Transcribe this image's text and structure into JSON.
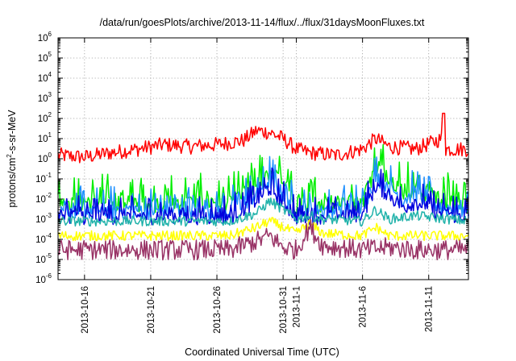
{
  "chart_data": {
    "type": "line",
    "title": "/data/run/goesPlots/archive/2013-11-14/flux/../flux/31daysMoonFluxes.txt",
    "xlabel": "Coordinated Universal Time (UTC)",
    "ylabel": "protons/cm2-s-sr-MeV",
    "ylabel_parts": {
      "before": "protons/cm",
      "sup": "2",
      "after": "-s-sr-MeV"
    },
    "y_scale": "log",
    "y_tick_exponents": [
      -6,
      -5,
      -4,
      -3,
      -2,
      -1,
      0,
      1,
      2,
      3,
      4,
      5,
      6
    ],
    "ylim": [
      "1e-6",
      "1e6"
    ],
    "xlim": [
      "2013-10-14",
      "2013-11-14"
    ],
    "x_ticks": [
      {
        "date": "2013-10-16",
        "label": "2013-10-16"
      },
      {
        "date": "2013-10-21",
        "label": "2013-10-21"
      },
      {
        "date": "2013-10-26",
        "label": "2013-10-26"
      },
      {
        "date": "2013-10-31",
        "label": "2013-10-31"
      },
      {
        "date": "2013-11-01",
        "label": "2013-11-1"
      },
      {
        "date": "2013-11-06",
        "label": "2013-11-6"
      },
      {
        "date": "2013-11-11",
        "label": "2013-11-11"
      }
    ],
    "grid": true,
    "legend": "none",
    "series": [
      {
        "color": "#ff0000",
        "x": [
          "2013-10-14",
          "2013-10-16",
          "2013-10-18",
          "2013-10-20",
          "2013-10-22",
          "2013-10-24",
          "2013-10-26",
          "2013-10-28",
          "2013-10-29",
          "2013-10-30",
          "2013-10-31",
          "2013-11-01",
          "2013-11-02",
          "2013-11-04",
          "2013-11-06",
          "2013-11-07",
          "2013-11-08",
          "2013-11-10",
          "2013-11-12",
          "2013-11-12T02:00",
          "2013-11-12T06:00",
          "2013-11-14"
        ],
        "y": [
          1.5,
          1.2,
          2.0,
          3.0,
          5.0,
          4.0,
          5.0,
          8.0,
          25,
          20,
          10,
          3.0,
          2.0,
          1.5,
          3.0,
          10,
          4.0,
          3.0,
          10,
          180,
          3.0,
          3.0
        ],
        "noise": 0.75
      },
      {
        "color": "#00ee00",
        "x": [
          "2013-10-14",
          "2013-10-16",
          "2013-10-20",
          "2013-10-24",
          "2013-10-27",
          "2013-10-29",
          "2013-10-30",
          "2013-10-31",
          "2013-11-01",
          "2013-11-03",
          "2013-11-06",
          "2013-11-07",
          "2013-11-08",
          "2013-11-09",
          "2013-11-10",
          "2013-11-12",
          "2013-11-14"
        ],
        "y": [
          0.01,
          0.008,
          0.008,
          0.008,
          0.008,
          0.05,
          0.3,
          0.08,
          0.005,
          0.008,
          0.01,
          0.5,
          0.2,
          0.03,
          0.05,
          0.01,
          0.008
        ],
        "noise": 1.15
      },
      {
        "color": "#1e90ff",
        "x": [
          "2013-10-14",
          "2013-10-16",
          "2013-10-20",
          "2013-10-24",
          "2013-10-27",
          "2013-10-29",
          "2013-10-30",
          "2013-10-31",
          "2013-11-01",
          "2013-11-03",
          "2013-11-06",
          "2013-11-07",
          "2013-11-08",
          "2013-11-09",
          "2013-11-10",
          "2013-11-12",
          "2013-11-14"
        ],
        "y": [
          0.004,
          0.003,
          0.003,
          0.003,
          0.003,
          0.02,
          0.1,
          0.02,
          0.003,
          0.003,
          0.004,
          0.15,
          0.05,
          0.01,
          0.02,
          0.004,
          0.003
        ],
        "noise": 1.0
      },
      {
        "color": "#0000dd",
        "x": [
          "2013-10-14",
          "2013-10-16",
          "2013-10-20",
          "2013-10-24",
          "2013-10-27",
          "2013-10-29",
          "2013-10-30",
          "2013-10-31",
          "2013-11-01",
          "2013-11-03",
          "2013-11-06",
          "2013-11-07",
          "2013-11-08",
          "2013-11-09",
          "2013-11-10",
          "2013-11-12",
          "2013-11-14"
        ],
        "y": [
          0.002,
          0.0015,
          0.0015,
          0.0015,
          0.0015,
          0.01,
          0.04,
          0.008,
          0.0015,
          0.0015,
          0.002,
          0.05,
          0.02,
          0.004,
          0.008,
          0.002,
          0.0015
        ],
        "noise": 0.9
      },
      {
        "color": "#20b2aa",
        "x": [
          "2013-10-14",
          "2013-10-20",
          "2013-10-27",
          "2013-10-29",
          "2013-10-30",
          "2013-10-31",
          "2013-11-01",
          "2013-11-02",
          "2013-11-03",
          "2013-11-06",
          "2013-11-07",
          "2013-11-08",
          "2013-11-10",
          "2013-11-14"
        ],
        "y": [
          0.0008,
          0.0008,
          0.0008,
          0.002,
          0.008,
          0.003,
          0.001,
          0.0015,
          0.001,
          0.0008,
          0.003,
          0.001,
          0.0015,
          0.0008
        ],
        "noise": 0.5
      },
      {
        "color": "#ffff00",
        "x": [
          "2013-10-14",
          "2013-10-20",
          "2013-10-27",
          "2013-10-29",
          "2013-10-30",
          "2013-10-31",
          "2013-11-01",
          "2013-11-02",
          "2013-11-03",
          "2013-11-06",
          "2013-11-07",
          "2013-11-08",
          "2013-11-10",
          "2013-11-14"
        ],
        "y": [
          0.00015,
          0.00015,
          0.00015,
          0.0004,
          0.0008,
          0.0004,
          0.0002,
          0.0006,
          0.0002,
          0.00015,
          0.0004,
          0.00015,
          0.00015,
          0.00015
        ],
        "noise": 0.5
      },
      {
        "color": "#993366",
        "x": [
          "2013-10-14",
          "2013-10-20",
          "2013-10-27",
          "2013-10-29",
          "2013-10-30",
          "2013-10-31",
          "2013-11-01",
          "2013-11-02",
          "2013-11-03",
          "2013-11-06",
          "2013-11-08",
          "2013-11-10",
          "2013-11-14"
        ],
        "y": [
          3e-05,
          3e-05,
          3e-05,
          8e-05,
          0.00015,
          4e-05,
          3e-05,
          0.0004,
          5e-05,
          3e-05,
          4e-05,
          3e-05,
          3e-05
        ],
        "noise": 1.0
      }
    ]
  }
}
